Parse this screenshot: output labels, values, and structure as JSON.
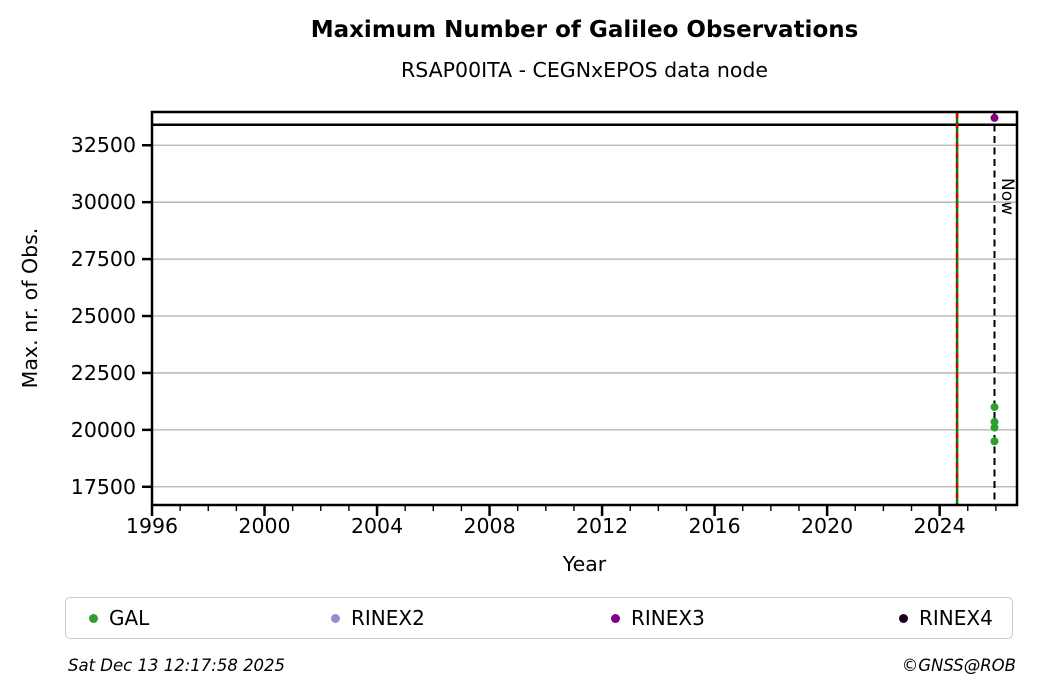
{
  "header": {
    "title": "Maximum Number of Galileo Observations",
    "subtitle": "RSAP00ITA - CEGNxEPOS data node"
  },
  "footer": {
    "timestamp": "Sat Dec 13 12:17:58 2025",
    "credit": "©GNSS@ROB"
  },
  "chart_data": {
    "type": "scatter",
    "title": "Maximum Number of Galileo Observations",
    "subtitle": "RSAP00ITA - CEGNxEPOS data node",
    "xlabel": "Year",
    "ylabel": "Max. nr. of Obs.",
    "xlim": [
      1996,
      2026.75
    ],
    "ylim": [
      16700,
      33960
    ],
    "xticks_major": [
      1996,
      2000,
      2004,
      2008,
      2012,
      2016,
      2020,
      2024
    ],
    "xticks_minor_step": 1,
    "yticks": [
      17500,
      20000,
      22500,
      25000,
      27500,
      30000,
      32500
    ],
    "grid": "horizontal-only",
    "grid_color": "#b0b0b0",
    "hlines": [
      {
        "y": 33400,
        "color": "#000000",
        "style": "solid",
        "name": "max-reference-line"
      }
    ],
    "vlines": [
      {
        "x": 2024.62,
        "colors": [
          "#008000",
          "#e00000"
        ],
        "style": "green-solid-red-dashed",
        "name": "last-data-line",
        "label": ""
      },
      {
        "x": 2025.95,
        "colors": [
          "#000000"
        ],
        "style": "dashed",
        "name": "now-line",
        "label": "Now"
      }
    ],
    "now_label": "Now",
    "series": [
      {
        "name": "GAL",
        "color": "#2ca02c",
        "points": [
          [
            2025.95,
            21000
          ],
          [
            2025.95,
            20350
          ],
          [
            2025.95,
            20100
          ],
          [
            2025.95,
            19500
          ]
        ]
      },
      {
        "name": "RINEX2",
        "color": "#8f90cf",
        "points": []
      },
      {
        "name": "RINEX3",
        "color": "#800080",
        "points": [
          [
            2025.95,
            33700
          ]
        ]
      },
      {
        "name": "RINEX4",
        "color": "#200021",
        "points": []
      }
    ],
    "legend": {
      "position": "bottom",
      "entries": [
        "GAL",
        "RINEX2",
        "RINEX3",
        "RINEX4"
      ]
    }
  }
}
